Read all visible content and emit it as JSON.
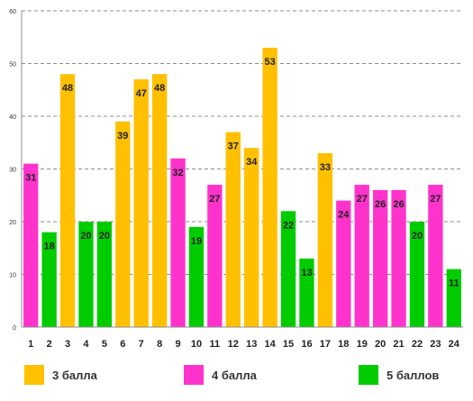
{
  "chart_data": {
    "type": "bar",
    "categories": [
      "1",
      "2",
      "3",
      "4",
      "5",
      "6",
      "7",
      "8",
      "9",
      "10",
      "11",
      "12",
      "13",
      "14",
      "15",
      "16",
      "17",
      "18",
      "19",
      "20",
      "21",
      "22",
      "23",
      "24"
    ],
    "values": [
      31,
      18,
      48,
      20,
      20,
      39,
      47,
      48,
      32,
      19,
      27,
      37,
      34,
      53,
      22,
      13,
      33,
      24,
      27,
      26,
      26,
      20,
      27,
      11
    ],
    "groups": [
      "4 балла",
      "5 баллов",
      "3 балла",
      "5 баллов",
      "5 баллов",
      "3 балла",
      "3 балла",
      "3 балла",
      "4 балла",
      "5 баллов",
      "4 балла",
      "3 балла",
      "3 балла",
      "3 балла",
      "5 баллов",
      "5 баллов",
      "3 балла",
      "4 балла",
      "4 балла",
      "4 балла",
      "4 балла",
      "5 баллов",
      "4 балла",
      "5 баллов"
    ],
    "legend": [
      {
        "name": "3 балла",
        "color": "#FFC000"
      },
      {
        "name": "4 балла",
        "color": "#FF33CC"
      },
      {
        "name": "5 баллов",
        "color": "#00CC00"
      }
    ],
    "yticks": [
      0,
      10,
      20,
      30,
      40,
      50,
      60
    ],
    "ylim": [
      0,
      60
    ],
    "grid": true,
    "legend_position": "bottom"
  }
}
